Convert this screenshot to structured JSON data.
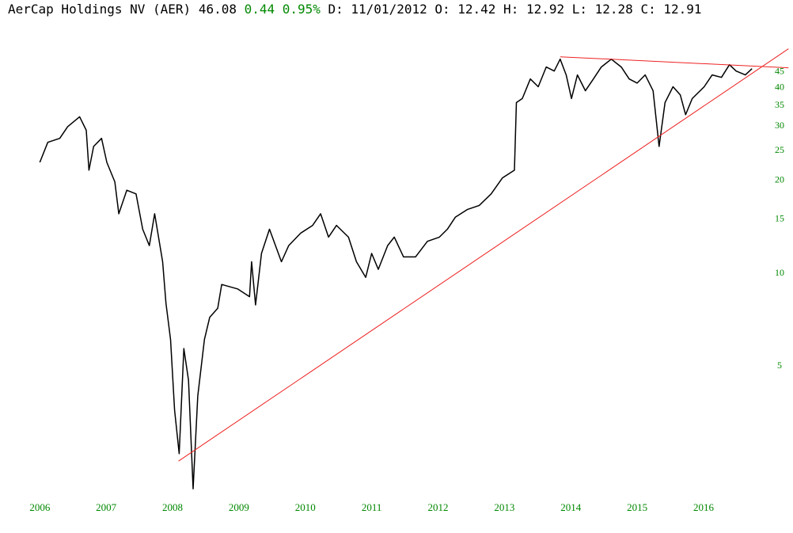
{
  "chart_data": {
    "type": "line",
    "header": [
      "AerCap Holdings NV (AER) 46.08",
      "0.44 0.95%",
      "D: 11/01/2012 O: 12.42 H: 12.92 L: 12.28 C: 12.91"
    ],
    "header_colors": [
      "#000000",
      "#008800",
      "#000000"
    ],
    "log_scale": true,
    "xlim": [
      2005.4,
      2017.3
    ],
    "xticks": [
      2006,
      2007,
      2008,
      2009,
      2010,
      2011,
      2012,
      2013,
      2014,
      2015,
      2016
    ],
    "ylim": [
      1.8,
      54
    ],
    "yticks": [
      5,
      10,
      15,
      20,
      25,
      30,
      35,
      40,
      45
    ],
    "tick_color": "#008800",
    "series": [
      {
        "color": "#000000",
        "x": [
          2006.0,
          2006.12,
          2006.3,
          2006.42,
          2006.6,
          2006.7,
          2006.74,
          2006.81,
          2006.93,
          2007.01,
          2007.13,
          2007.19,
          2007.31,
          2007.45,
          2007.55,
          2007.65,
          2007.73,
          2007.85,
          2007.9,
          2007.97,
          2008.03,
          2008.1,
          2008.17,
          2008.24,
          2008.31,
          2008.38,
          2008.48,
          2008.56,
          2008.68,
          2008.74,
          2008.98,
          2009.16,
          2009.19,
          2009.25,
          2009.34,
          2009.46,
          2009.64,
          2009.75,
          2009.93,
          2010.11,
          2010.23,
          2010.35,
          2010.47,
          2010.65,
          2010.77,
          2010.91,
          2011.0,
          2011.1,
          2011.24,
          2011.34,
          2011.48,
          2011.66,
          2011.84,
          2012.02,
          2012.14,
          2012.26,
          2012.44,
          2012.62,
          2012.8,
          2012.97,
          2013.15,
          2013.18,
          2013.27,
          2013.39,
          2013.51,
          2013.63,
          2013.75,
          2013.84,
          2013.93,
          2014.01,
          2014.1,
          2014.22,
          2014.34,
          2014.46,
          2014.61,
          2014.76,
          2014.88,
          2015.0,
          2015.12,
          2015.24,
          2015.33,
          2015.42,
          2015.54,
          2015.65,
          2015.73,
          2015.83,
          2016.01,
          2016.13,
          2016.27,
          2016.39,
          2016.49,
          2016.63,
          2016.73
        ],
        "values": [
          22.9,
          26.6,
          27.4,
          29.9,
          32.2,
          29.1,
          21.6,
          25.8,
          27.4,
          22.9,
          19.8,
          15.6,
          18.6,
          18.1,
          13.9,
          12.3,
          15.6,
          10.9,
          8.0,
          6.1,
          3.6,
          2.6,
          5.7,
          4.5,
          2.0,
          4.0,
          6.1,
          7.2,
          7.7,
          9.2,
          8.9,
          8.4,
          10.9,
          7.9,
          11.6,
          13.9,
          10.9,
          12.3,
          13.5,
          14.3,
          15.6,
          13.1,
          14.3,
          13.1,
          10.9,
          9.7,
          11.6,
          10.3,
          12.3,
          13.1,
          11.3,
          11.3,
          12.7,
          13.1,
          13.9,
          15.2,
          16.1,
          16.6,
          18.1,
          20.4,
          21.6,
          35.8,
          36.9,
          42.7,
          40.3,
          46.7,
          45.3,
          49.5,
          44.0,
          36.9,
          44.0,
          39.1,
          42.7,
          46.7,
          49.5,
          46.7,
          42.7,
          41.4,
          44.0,
          39.1,
          25.8,
          35.8,
          40.3,
          37.9,
          32.7,
          36.9,
          40.3,
          44.0,
          43.2,
          47.5,
          45.3,
          44.0,
          46.1
        ]
      },
      {
        "color": "#ee2222",
        "x": [
          2008.09,
          2017.28
        ],
        "values": [
          2.46,
          53.5
        ]
      },
      {
        "color": "#ee2222",
        "x": [
          2013.84,
          2017.28
        ],
        "values": [
          50.4,
          46.4
        ]
      }
    ]
  }
}
